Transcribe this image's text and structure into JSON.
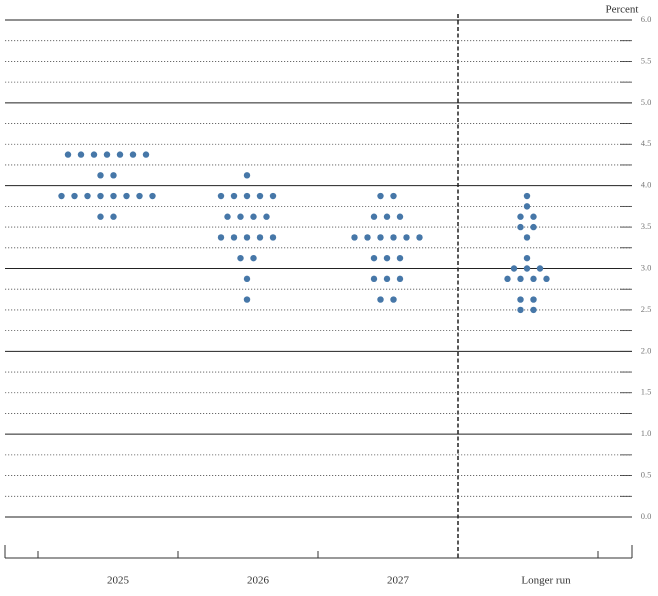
{
  "chart_data": {
    "type": "dot",
    "y_label": "Percent",
    "categories": [
      "2025",
      "2026",
      "2027",
      "Longer run"
    ],
    "values": [
      [
        4.375,
        4.375,
        4.375,
        4.375,
        4.375,
        4.375,
        4.375,
        4.125,
        4.125,
        3.875,
        3.875,
        3.875,
        3.875,
        3.875,
        3.875,
        3.875,
        3.875,
        3.625,
        3.625
      ],
      [
        4.125,
        3.875,
        3.875,
        3.875,
        3.875,
        3.875,
        3.625,
        3.625,
        3.625,
        3.625,
        3.375,
        3.375,
        3.375,
        3.375,
        3.375,
        3.125,
        3.125,
        2.875,
        2.625
      ],
      [
        3.875,
        3.875,
        3.625,
        3.625,
        3.625,
        3.375,
        3.375,
        3.375,
        3.375,
        3.375,
        3.375,
        3.125,
        3.125,
        3.125,
        2.875,
        2.875,
        2.875,
        2.625,
        2.625
      ],
      [
        3.875,
        3.75,
        3.625,
        3.625,
        3.5,
        3.5,
        3.375,
        3.125,
        3.0,
        3.0,
        3.0,
        2.875,
        2.875,
        2.875,
        2.875,
        2.625,
        2.625,
        2.5,
        2.5
      ]
    ],
    "color": "#4677a8",
    "ylim": [
      0,
      6
    ],
    "yticks": [
      {
        "value": 0,
        "label": "0.0"
      },
      0.5,
      {
        "value": 1,
        "label": "1.0"
      },
      1.5,
      {
        "value": 2,
        "label": "2.0"
      },
      2.5,
      {
        "value": 3,
        "label": "3.0"
      },
      3.5,
      {
        "value": 4,
        "label": "4.0"
      },
      4.5,
      {
        "value": 5,
        "label": "5.0"
      },
      5.5,
      {
        "value": 6,
        "label": "6.0"
      }
    ],
    "yticks_minor": [
      0.25,
      0.75,
      1.25,
      1.75,
      2.25,
      2.75,
      3.25,
      3.75,
      4.25,
      4.75,
      5.25,
      5.75
    ],
    "grid": true
  }
}
